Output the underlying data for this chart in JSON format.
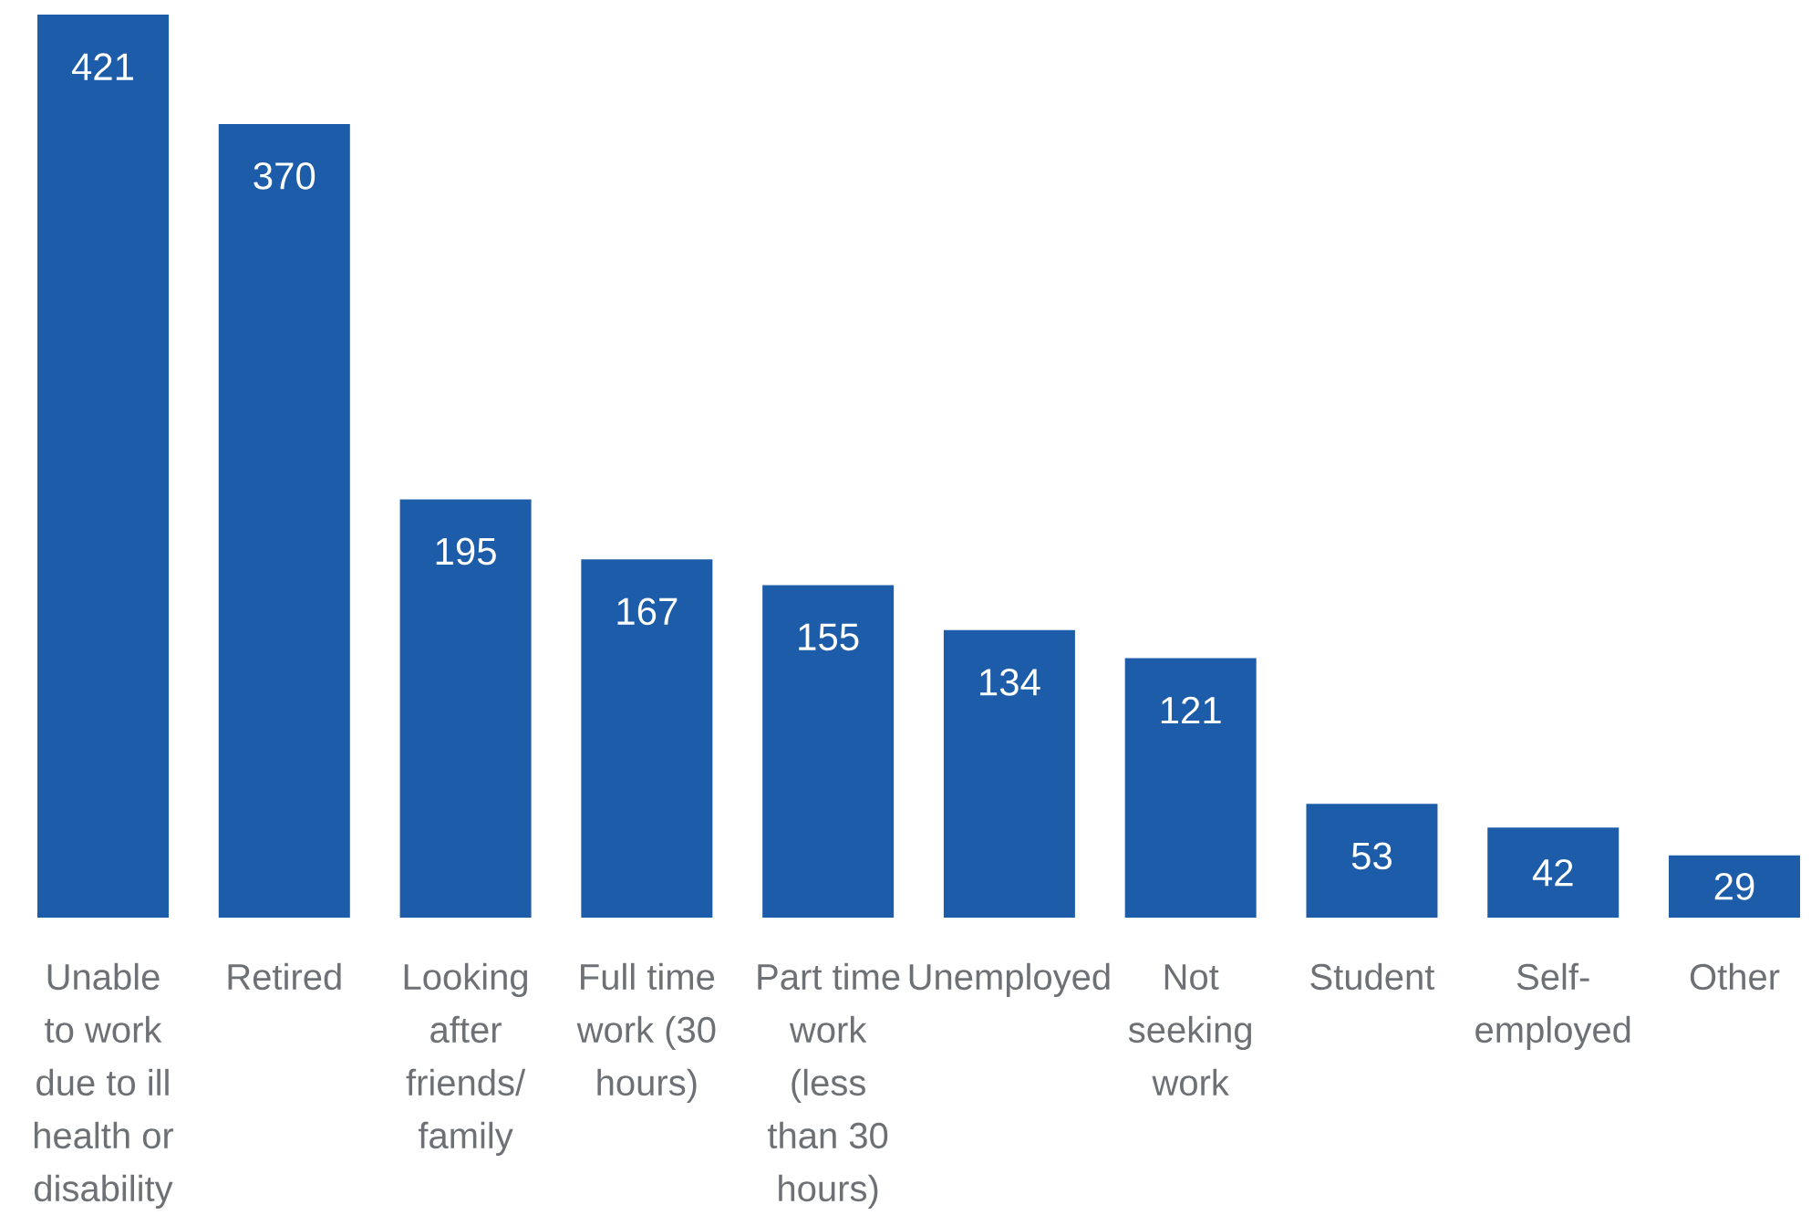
{
  "chart_data": {
    "type": "bar",
    "categories": [
      "Unable to work due to ill health or disability",
      "Retired",
      "Looking after friends/ family",
      "Full time work (30 hours)",
      "Part time work (less than 30 hours)",
      "Unemployed",
      "Not seeking work",
      "Student",
      "Self-employed",
      "Other"
    ],
    "values": [
      421,
      370,
      195,
      167,
      155,
      134,
      121,
      53,
      42,
      29
    ],
    "color": "#1d5ca9",
    "data_labels": true
  }
}
